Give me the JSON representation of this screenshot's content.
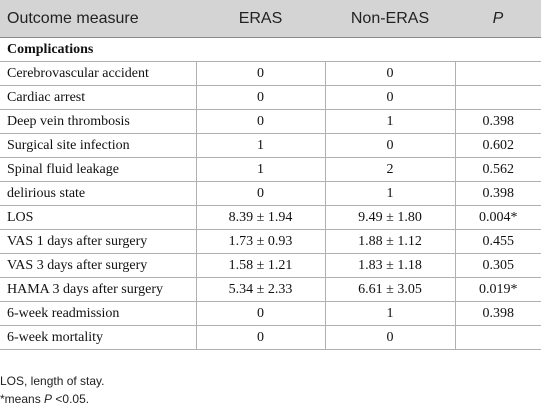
{
  "table": {
    "headers": [
      "Outcome measure",
      "ERAS",
      "Non-ERAS",
      "P"
    ],
    "section_label": "Complications",
    "rows": [
      {
        "measure": "Cerebrovascular accident",
        "eras": "0",
        "non_eras": "0",
        "p": ""
      },
      {
        "measure": "Cardiac arrest",
        "eras": "0",
        "non_eras": "0",
        "p": ""
      },
      {
        "measure": "Deep vein thrombosis",
        "eras": "0",
        "non_eras": "1",
        "p": "0.398"
      },
      {
        "measure": "Surgical site infection",
        "eras": "1",
        "non_eras": "0",
        "p": "0.602"
      },
      {
        "measure": "Spinal fluid leakage",
        "eras": "1",
        "non_eras": "2",
        "p": "0.562"
      },
      {
        "measure": "delirious state",
        "eras": "0",
        "non_eras": "1",
        "p": "0.398"
      },
      {
        "measure": "LOS",
        "eras": "8.39 ± 1.94",
        "non_eras": "9.49 ± 1.80",
        "p": "0.004*"
      },
      {
        "measure": "VAS 1 days after surgery",
        "eras": "1.73 ± 0.93",
        "non_eras": "1.88 ± 1.12",
        "p": "0.455"
      },
      {
        "measure": "VAS 3 days after surgery",
        "eras": "1.58 ± 1.21",
        "non_eras": "1.83 ± 1.18",
        "p": "0.305"
      },
      {
        "measure": "HAMA 3 days after surgery",
        "eras": "5.34 ± 2.33",
        "non_eras": "6.61 ± 3.05",
        "p": "0.019*"
      },
      {
        "measure": "6-week readmission",
        "eras": "0",
        "non_eras": "1",
        "p": "0.398"
      },
      {
        "measure": "6-week mortality",
        "eras": "0",
        "non_eras": "0",
        "p": ""
      }
    ]
  },
  "notes": {
    "los_definition": "LOS, length of stay.",
    "sig_prefix": "*means ",
    "sig_p": "P",
    "sig_suffix": " <0.05."
  }
}
